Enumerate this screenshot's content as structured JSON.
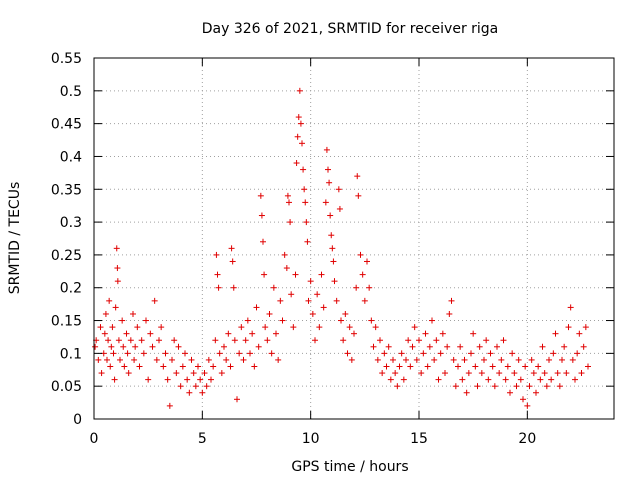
{
  "chart_data": {
    "type": "scatter",
    "title": "Day 326 of 2021, SRMTID for receiver riga",
    "xlabel": "GPS time / hours",
    "ylabel": "SRMTID / TECUs",
    "xlim": [
      0,
      24
    ],
    "ylim": [
      0,
      0.55
    ],
    "x_ticks": [
      0,
      5,
      10,
      15,
      20
    ],
    "x_tick_labels": [
      "0",
      "5",
      "10",
      "15",
      "20"
    ],
    "y_ticks": [
      0,
      0.05,
      0.1,
      0.15,
      0.2,
      0.25,
      0.3,
      0.35,
      0.4,
      0.45,
      0.5,
      0.55
    ],
    "y_tick_labels": [
      "0",
      "0.05",
      "0.1",
      "0.15",
      "0.2",
      "0.25",
      "0.3",
      "0.35",
      "0.4",
      "0.45",
      "0.5",
      "0.55"
    ],
    "grid": true,
    "marker": "+",
    "marker_color": "#e00000",
    "series": [
      {
        "name": "SRMTID",
        "points": [
          [
            0.05,
            0.11
          ],
          [
            0.1,
            0.12
          ],
          [
            0.2,
            0.09
          ],
          [
            0.3,
            0.14
          ],
          [
            0.35,
            0.07
          ],
          [
            0.45,
            0.1
          ],
          [
            0.5,
            0.13
          ],
          [
            0.55,
            0.16
          ],
          [
            0.6,
            0.09
          ],
          [
            0.65,
            0.12
          ],
          [
            0.7,
            0.18
          ],
          [
            0.75,
            0.08
          ],
          [
            0.8,
            0.11
          ],
          [
            0.85,
            0.14
          ],
          [
            0.9,
            0.1
          ],
          [
            0.95,
            0.06
          ],
          [
            1.0,
            0.17
          ],
          [
            1.05,
            0.26
          ],
          [
            1.08,
            0.23
          ],
          [
            1.1,
            0.21
          ],
          [
            1.15,
            0.12
          ],
          [
            1.2,
            0.09
          ],
          [
            1.3,
            0.15
          ],
          [
            1.35,
            0.11
          ],
          [
            1.4,
            0.08
          ],
          [
            1.5,
            0.13
          ],
          [
            1.55,
            0.1
          ],
          [
            1.6,
            0.07
          ],
          [
            1.7,
            0.12
          ],
          [
            1.8,
            0.16
          ],
          [
            1.85,
            0.09
          ],
          [
            1.9,
            0.11
          ],
          [
            2.0,
            0.14
          ],
          [
            2.1,
            0.08
          ],
          [
            2.2,
            0.12
          ],
          [
            2.3,
            0.1
          ],
          [
            2.4,
            0.15
          ],
          [
            2.5,
            0.06
          ],
          [
            2.6,
            0.13
          ],
          [
            2.7,
            0.11
          ],
          [
            2.8,
            0.18
          ],
          [
            2.9,
            0.09
          ],
          [
            3.0,
            0.12
          ],
          [
            3.1,
            0.14
          ],
          [
            3.2,
            0.08
          ],
          [
            3.3,
            0.1
          ],
          [
            3.4,
            0.06
          ],
          [
            3.5,
            0.02
          ],
          [
            3.6,
            0.09
          ],
          [
            3.7,
            0.12
          ],
          [
            3.8,
            0.07
          ],
          [
            3.9,
            0.11
          ],
          [
            4.0,
            0.05
          ],
          [
            4.1,
            0.08
          ],
          [
            4.2,
            0.1
          ],
          [
            4.3,
            0.06
          ],
          [
            4.4,
            0.04
          ],
          [
            4.5,
            0.09
          ],
          [
            4.6,
            0.07
          ],
          [
            4.7,
            0.05
          ],
          [
            4.8,
            0.08
          ],
          [
            4.9,
            0.06
          ],
          [
            5.0,
            0.04
          ],
          [
            5.1,
            0.07
          ],
          [
            5.2,
            0.05
          ],
          [
            5.3,
            0.09
          ],
          [
            5.4,
            0.06
          ],
          [
            5.5,
            0.08
          ],
          [
            5.6,
            0.12
          ],
          [
            5.65,
            0.25
          ],
          [
            5.7,
            0.22
          ],
          [
            5.75,
            0.2
          ],
          [
            5.8,
            0.1
          ],
          [
            5.9,
            0.07
          ],
          [
            6.0,
            0.11
          ],
          [
            6.1,
            0.09
          ],
          [
            6.2,
            0.13
          ],
          [
            6.3,
            0.08
          ],
          [
            6.35,
            0.26
          ],
          [
            6.4,
            0.24
          ],
          [
            6.45,
            0.2
          ],
          [
            6.5,
            0.12
          ],
          [
            6.6,
            0.03
          ],
          [
            6.7,
            0.1
          ],
          [
            6.8,
            0.14
          ],
          [
            6.9,
            0.09
          ],
          [
            7.0,
            0.12
          ],
          [
            7.1,
            0.15
          ],
          [
            7.2,
            0.1
          ],
          [
            7.3,
            0.13
          ],
          [
            7.4,
            0.08
          ],
          [
            7.5,
            0.17
          ],
          [
            7.6,
            0.11
          ],
          [
            7.7,
            0.34
          ],
          [
            7.75,
            0.31
          ],
          [
            7.8,
            0.27
          ],
          [
            7.85,
            0.22
          ],
          [
            7.9,
            0.14
          ],
          [
            8.0,
            0.12
          ],
          [
            8.1,
            0.16
          ],
          [
            8.2,
            0.1
          ],
          [
            8.3,
            0.2
          ],
          [
            8.4,
            0.13
          ],
          [
            8.5,
            0.09
          ],
          [
            8.6,
            0.18
          ],
          [
            8.7,
            0.15
          ],
          [
            8.8,
            0.25
          ],
          [
            8.9,
            0.23
          ],
          [
            8.95,
            0.34
          ],
          [
            9.0,
            0.33
          ],
          [
            9.05,
            0.3
          ],
          [
            9.1,
            0.19
          ],
          [
            9.2,
            0.14
          ],
          [
            9.3,
            0.22
          ],
          [
            9.35,
            0.39
          ],
          [
            9.4,
            0.43
          ],
          [
            9.45,
            0.46
          ],
          [
            9.5,
            0.5
          ],
          [
            9.55,
            0.45
          ],
          [
            9.6,
            0.42
          ],
          [
            9.65,
            0.38
          ],
          [
            9.7,
            0.35
          ],
          [
            9.75,
            0.33
          ],
          [
            9.8,
            0.3
          ],
          [
            9.85,
            0.27
          ],
          [
            9.9,
            0.18
          ],
          [
            10.0,
            0.21
          ],
          [
            10.1,
            0.16
          ],
          [
            10.2,
            0.12
          ],
          [
            10.3,
            0.19
          ],
          [
            10.4,
            0.14
          ],
          [
            10.5,
            0.22
          ],
          [
            10.6,
            0.17
          ],
          [
            10.7,
            0.33
          ],
          [
            10.75,
            0.41
          ],
          [
            10.8,
            0.38
          ],
          [
            10.85,
            0.36
          ],
          [
            10.9,
            0.31
          ],
          [
            10.95,
            0.28
          ],
          [
            11.0,
            0.26
          ],
          [
            11.05,
            0.24
          ],
          [
            11.1,
            0.21
          ],
          [
            11.2,
            0.18
          ],
          [
            11.3,
            0.35
          ],
          [
            11.35,
            0.32
          ],
          [
            11.4,
            0.15
          ],
          [
            11.5,
            0.12
          ],
          [
            11.6,
            0.16
          ],
          [
            11.7,
            0.1
          ],
          [
            11.8,
            0.14
          ],
          [
            11.9,
            0.09
          ],
          [
            12.0,
            0.13
          ],
          [
            12.1,
            0.2
          ],
          [
            12.15,
            0.37
          ],
          [
            12.2,
            0.34
          ],
          [
            12.3,
            0.25
          ],
          [
            12.4,
            0.22
          ],
          [
            12.5,
            0.18
          ],
          [
            12.6,
            0.24
          ],
          [
            12.7,
            0.2
          ],
          [
            12.8,
            0.15
          ],
          [
            12.9,
            0.11
          ],
          [
            13.0,
            0.14
          ],
          [
            13.1,
            0.09
          ],
          [
            13.2,
            0.12
          ],
          [
            13.3,
            0.07
          ],
          [
            13.4,
            0.1
          ],
          [
            13.5,
            0.08
          ],
          [
            13.6,
            0.11
          ],
          [
            13.7,
            0.06
          ],
          [
            13.8,
            0.09
          ],
          [
            13.9,
            0.07
          ],
          [
            14.0,
            0.05
          ],
          [
            14.1,
            0.08
          ],
          [
            14.2,
            0.1
          ],
          [
            14.3,
            0.06
          ],
          [
            14.4,
            0.09
          ],
          [
            14.5,
            0.12
          ],
          [
            14.6,
            0.08
          ],
          [
            14.7,
            0.11
          ],
          [
            14.8,
            0.14
          ],
          [
            14.9,
            0.09
          ],
          [
            15.0,
            0.12
          ],
          [
            15.1,
            0.07
          ],
          [
            15.2,
            0.1
          ],
          [
            15.3,
            0.13
          ],
          [
            15.4,
            0.08
          ],
          [
            15.5,
            0.11
          ],
          [
            15.6,
            0.15
          ],
          [
            15.7,
            0.09
          ],
          [
            15.8,
            0.12
          ],
          [
            15.9,
            0.06
          ],
          [
            16.0,
            0.1
          ],
          [
            16.1,
            0.13
          ],
          [
            16.2,
            0.07
          ],
          [
            16.3,
            0.11
          ],
          [
            16.4,
            0.16
          ],
          [
            16.5,
            0.18
          ],
          [
            16.6,
            0.09
          ],
          [
            16.7,
            0.05
          ],
          [
            16.8,
            0.08
          ],
          [
            16.9,
            0.11
          ],
          [
            17.0,
            0.06
          ],
          [
            17.1,
            0.09
          ],
          [
            17.2,
            0.04
          ],
          [
            17.3,
            0.07
          ],
          [
            17.4,
            0.1
          ],
          [
            17.5,
            0.13
          ],
          [
            17.6,
            0.08
          ],
          [
            17.7,
            0.05
          ],
          [
            17.8,
            0.11
          ],
          [
            17.9,
            0.07
          ],
          [
            18.0,
            0.09
          ],
          [
            18.1,
            0.12
          ],
          [
            18.2,
            0.06
          ],
          [
            18.3,
            0.1
          ],
          [
            18.4,
            0.08
          ],
          [
            18.5,
            0.05
          ],
          [
            18.6,
            0.11
          ],
          [
            18.7,
            0.07
          ],
          [
            18.8,
            0.09
          ],
          [
            18.9,
            0.12
          ],
          [
            19.0,
            0.06
          ],
          [
            19.1,
            0.08
          ],
          [
            19.2,
            0.04
          ],
          [
            19.3,
            0.1
          ],
          [
            19.4,
            0.07
          ],
          [
            19.5,
            0.05
          ],
          [
            19.6,
            0.09
          ],
          [
            19.7,
            0.06
          ],
          [
            19.8,
            0.03
          ],
          [
            19.9,
            0.08
          ],
          [
            20.0,
            0.02
          ],
          [
            20.1,
            0.05
          ],
          [
            20.2,
            0.09
          ],
          [
            20.3,
            0.07
          ],
          [
            20.4,
            0.04
          ],
          [
            20.5,
            0.08
          ],
          [
            20.6,
            0.06
          ],
          [
            20.7,
            0.11
          ],
          [
            20.8,
            0.07
          ],
          [
            20.9,
            0.05
          ],
          [
            21.0,
            0.09
          ],
          [
            21.1,
            0.06
          ],
          [
            21.2,
            0.1
          ],
          [
            21.3,
            0.13
          ],
          [
            21.4,
            0.07
          ],
          [
            21.5,
            0.05
          ],
          [
            21.6,
            0.09
          ],
          [
            21.7,
            0.11
          ],
          [
            21.8,
            0.07
          ],
          [
            21.9,
            0.14
          ],
          [
            22.0,
            0.17
          ],
          [
            22.1,
            0.09
          ],
          [
            22.2,
            0.06
          ],
          [
            22.3,
            0.1
          ],
          [
            22.4,
            0.13
          ],
          [
            22.5,
            0.07
          ],
          [
            22.6,
            0.11
          ],
          [
            22.7,
            0.14
          ],
          [
            22.8,
            0.08
          ]
        ]
      }
    ]
  }
}
